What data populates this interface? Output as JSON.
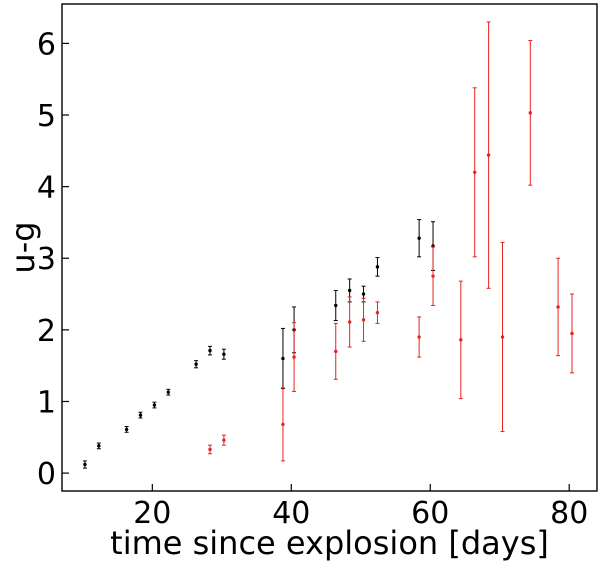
{
  "chart_data": {
    "type": "scatter",
    "xlabel": "time since explosion [days]",
    "ylabel": "u-g",
    "xlim": [
      7,
      84
    ],
    "ylim": [
      -0.25,
      6.55
    ],
    "xticks": [
      20,
      40,
      60,
      80
    ],
    "yticks": [
      0,
      1,
      2,
      3,
      4,
      5,
      6
    ],
    "grid": false,
    "series": [
      {
        "color": "#000000",
        "points": [
          {
            "x": 10.3,
            "y": 0.12,
            "err": 0.05
          },
          {
            "x": 12.3,
            "y": 0.38,
            "err": 0.04
          },
          {
            "x": 16.3,
            "y": 0.61,
            "err": 0.04
          },
          {
            "x": 18.3,
            "y": 0.81,
            "err": 0.04
          },
          {
            "x": 20.3,
            "y": 0.95,
            "err": 0.04
          },
          {
            "x": 22.3,
            "y": 1.13,
            "err": 0.04
          },
          {
            "x": 26.3,
            "y": 1.52,
            "err": 0.05
          },
          {
            "x": 28.3,
            "y": 1.71,
            "err": 0.06
          },
          {
            "x": 30.3,
            "y": 1.66,
            "err": 0.07
          },
          {
            "x": 38.8,
            "y": 1.6,
            "err": 0.42
          },
          {
            "x": 40.4,
            "y": 2.0,
            "err": 0.32
          },
          {
            "x": 46.4,
            "y": 2.34,
            "err": 0.21
          },
          {
            "x": 48.4,
            "y": 2.55,
            "err": 0.16
          },
          {
            "x": 50.4,
            "y": 2.5,
            "err": 0.11
          },
          {
            "x": 52.4,
            "y": 2.88,
            "err": 0.13
          },
          {
            "x": 58.4,
            "y": 3.28,
            "err": 0.26
          },
          {
            "x": 60.4,
            "y": 3.17,
            "err": 0.34
          }
        ]
      },
      {
        "color": "#e8231f",
        "points": [
          {
            "x": 28.3,
            "y": 0.33,
            "err": 0.06
          },
          {
            "x": 30.3,
            "y": 0.46,
            "err": 0.07
          },
          {
            "x": 38.8,
            "y": 0.68,
            "err": 0.51
          },
          {
            "x": 40.4,
            "y": 1.62,
            "err": 0.48
          },
          {
            "x": 46.4,
            "y": 1.7,
            "err": 0.39
          },
          {
            "x": 48.4,
            "y": 2.11,
            "err": 0.35
          },
          {
            "x": 50.4,
            "y": 2.14,
            "err": 0.3
          },
          {
            "x": 52.4,
            "y": 2.24,
            "err": 0.15
          },
          {
            "x": 58.4,
            "y": 1.9,
            "err": 0.28
          },
          {
            "x": 60.4,
            "y": 2.75,
            "err": 0.41
          },
          {
            "x": 64.4,
            "y": 1.86,
            "err": 0.82
          },
          {
            "x": 66.4,
            "y": 4.2,
            "err": 1.18
          },
          {
            "x": 68.4,
            "y": 4.44,
            "err": 1.86
          },
          {
            "x": 70.4,
            "y": 1.9,
            "err": 1.32
          },
          {
            "x": 74.4,
            "y": 5.03,
            "err": 1.01
          },
          {
            "x": 78.4,
            "y": 2.32,
            "err": 0.68
          },
          {
            "x": 80.4,
            "y": 1.95,
            "err": 0.55
          }
        ]
      }
    ]
  }
}
